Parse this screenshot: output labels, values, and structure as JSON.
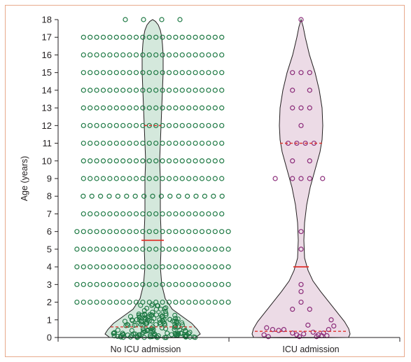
{
  "chart_data": {
    "type": "violin",
    "xlabel": "",
    "ylabel": "Age (years)",
    "ylim": [
      0,
      18
    ],
    "yticks": [
      0,
      1,
      2,
      3,
      4,
      5,
      6,
      7,
      8,
      9,
      10,
      11,
      12,
      13,
      14,
      15,
      16,
      17,
      18
    ],
    "categories": [
      "No ICU admission",
      "ICU admission"
    ],
    "colors": {
      "no_icu_fill": "#d4e8dc",
      "no_icu_points": "#1f7a45",
      "icu_fill": "#ecdbe6",
      "icu_points": "#8b2c7a",
      "median_line": "#e0312b",
      "iqr_line": "#e0312b",
      "outline": "#231f20",
      "frame": "#e8a98c"
    },
    "series": [
      {
        "median": 5.5,
        "q1": 0.6,
        "q3": 12,
        "counts_by_integer_age": {
          "2": 24,
          "3": 24,
          "4": 24,
          "5": 24,
          "6": 24,
          "7": 22,
          "8": 17,
          "9": 22,
          "10": 22,
          "11": 22,
          "12": 22,
          "13": 22,
          "14": 22,
          "15": 22,
          "16": 22,
          "17": 22,
          "18": 4
        },
        "infant_points": 160
      },
      {
        "median": 4,
        "q1": 0.35,
        "q3": 11,
        "points": [
          [
            0,
            18
          ],
          [
            -1,
            15
          ],
          [
            0,
            15
          ],
          [
            1,
            15
          ],
          [
            -1,
            14
          ],
          [
            1,
            14
          ],
          [
            -1,
            13
          ],
          [
            0,
            13
          ],
          [
            1,
            13
          ],
          [
            0,
            12
          ],
          [
            -1.5,
            11
          ],
          [
            -0.5,
            11
          ],
          [
            0.5,
            11
          ],
          [
            1.5,
            11
          ],
          [
            -1,
            10
          ],
          [
            1,
            10
          ],
          [
            -3,
            9
          ],
          [
            -1,
            9
          ],
          [
            0,
            9
          ],
          [
            1,
            9
          ],
          [
            2.5,
            9
          ],
          [
            0,
            6
          ],
          [
            0,
            5
          ],
          [
            0,
            3
          ],
          [
            0,
            2.6
          ],
          [
            -1,
            1.6
          ],
          [
            1,
            1.6
          ],
          [
            0,
            2
          ],
          [
            -4,
            0.55
          ],
          [
            -3.3,
            0.45
          ],
          [
            -2.6,
            0.4
          ],
          [
            -2,
            0.45
          ],
          [
            -1,
            0.25
          ],
          [
            -0.5,
            0.15
          ],
          [
            0.3,
            0.2
          ],
          [
            0.8,
            0.7
          ],
          [
            1.4,
            0.3
          ],
          [
            2,
            0.15
          ],
          [
            2.6,
            0.25
          ],
          [
            3.2,
            0.45
          ],
          [
            3.8,
            0.65
          ],
          [
            3.5,
            1.0
          ],
          [
            -4.3,
            0.15
          ],
          [
            -3.8,
            0.05
          ],
          [
            -0.2,
            0.05
          ],
          [
            1.8,
            0.05
          ],
          [
            2.4,
            0.1
          ],
          [
            3.0,
            0.1
          ]
        ]
      }
    ]
  }
}
